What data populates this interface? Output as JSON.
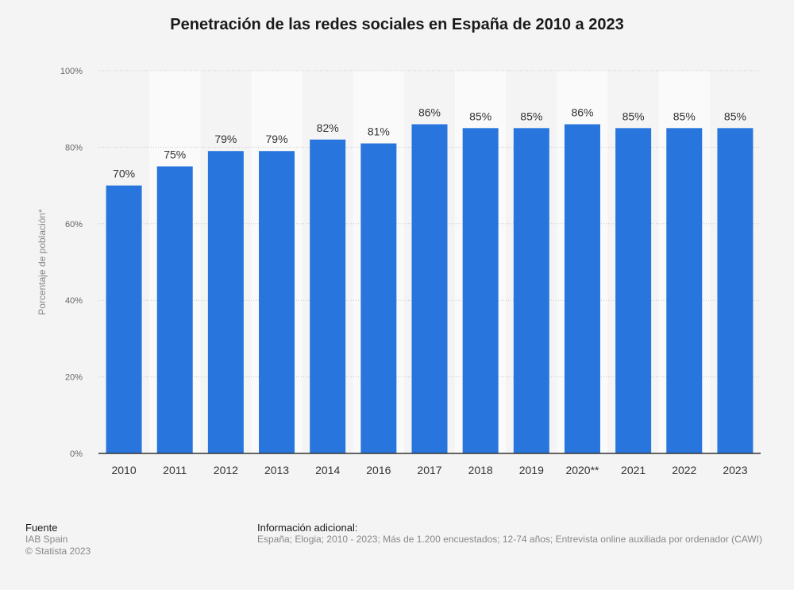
{
  "chart_data": {
    "type": "bar",
    "title": "Penetración de las redes sociales en España de 2010 a 2023",
    "ylabel": "Porcentaje de población*",
    "xlabel": "",
    "categories": [
      "2010",
      "2011",
      "2012",
      "2013",
      "2014",
      "2016",
      "2017",
      "2018",
      "2019",
      "2020**",
      "2021",
      "2022",
      "2023"
    ],
    "values": [
      70,
      75,
      79,
      79,
      82,
      81,
      86,
      85,
      85,
      86,
      85,
      85,
      85
    ],
    "value_labels": [
      "70%",
      "75%",
      "79%",
      "79%",
      "82%",
      "81%",
      "86%",
      "85%",
      "85%",
      "86%",
      "85%",
      "85%",
      "85%"
    ],
    "ylim": [
      0,
      100
    ],
    "yticks": [
      0,
      20,
      40,
      60,
      80,
      100
    ],
    "ytick_labels": [
      "0%",
      "20%",
      "40%",
      "60%",
      "80%",
      "100%"
    ],
    "grid": true,
    "bar_color": "#2876dd",
    "band_color": "#fafafa",
    "background_color": "#f4f4f4"
  },
  "footer": {
    "source_heading": "Fuente",
    "source_lines": [
      "IAB Spain",
      "© Statista 2023"
    ],
    "info_heading": "Información adicional:",
    "info_text": "España; Elogia; 2010 - 2023; Más de 1.200 encuestados; 12-74 años; Entrevista online auxiliada por ordenador (CAWI)"
  }
}
